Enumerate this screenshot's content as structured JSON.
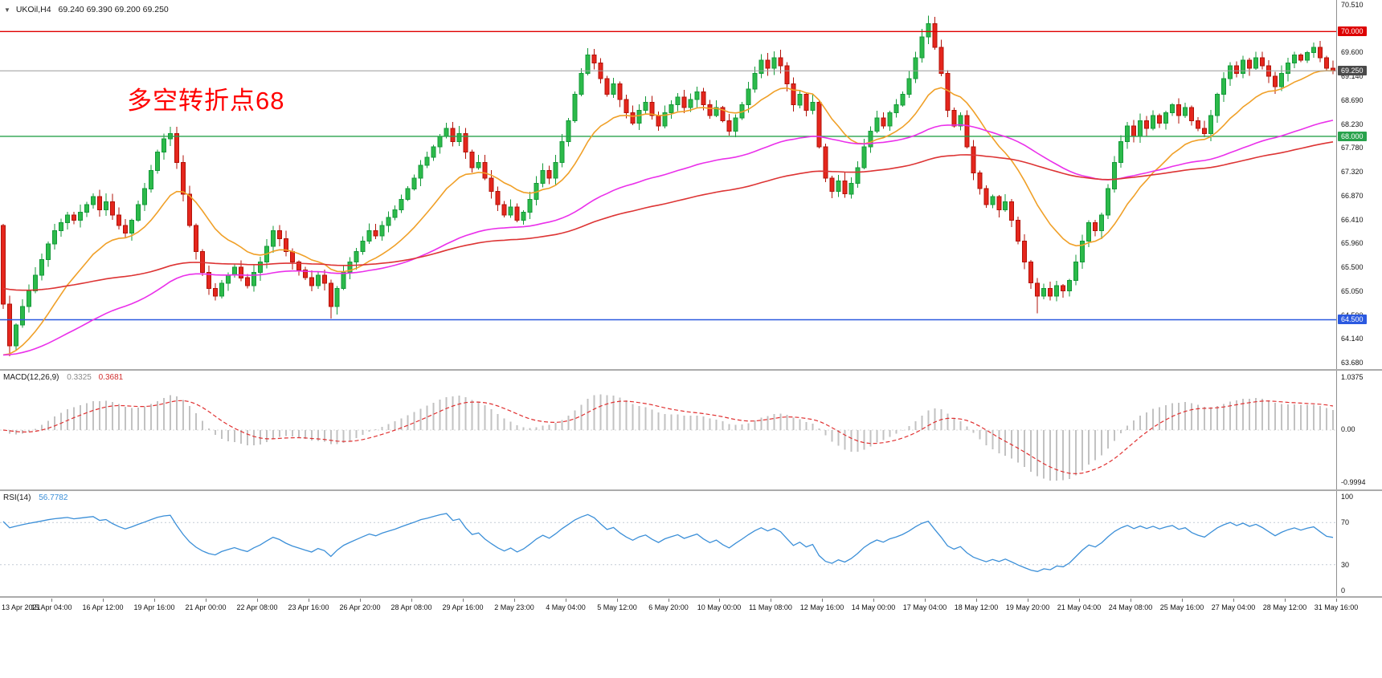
{
  "header": {
    "collapse_icon": "▼",
    "symbol": "UKOil,H4",
    "ohlc": "69.240 69.390 69.200 69.250"
  },
  "annotation": {
    "text": "多空转折点68",
    "color": "#ff0000"
  },
  "colors": {
    "up": "#2cba4a",
    "up_stroke": "#149939",
    "down": "#e5261d",
    "down_stroke": "#b21309",
    "ma_fast": "#f0a028",
    "ma_mid": "#ea30ea",
    "ma_slow": "#dd3434",
    "line_red": "#e00000",
    "line_green": "#28a24c",
    "line_blue": "#2b59e0",
    "bid_line": "#9a9a9a",
    "macd_hist": "#c2c2c2",
    "macd_signal": "#e03030",
    "rsi_line": "#3b8fd8"
  },
  "price_axis": {
    "ticks": [
      {
        "text": "70.510",
        "value": 70.51
      },
      {
        "text": "69.600",
        "value": 69.6
      },
      {
        "text": "69.140",
        "value": 69.14
      },
      {
        "text": "68.690",
        "value": 68.69
      },
      {
        "text": "68.230",
        "value": 68.23
      },
      {
        "text": "67.780",
        "value": 67.78
      },
      {
        "text": "67.320",
        "value": 67.32
      },
      {
        "text": "66.870",
        "value": 66.87
      },
      {
        "text": "66.410",
        "value": 66.41
      },
      {
        "text": "65.960",
        "value": 65.96
      },
      {
        "text": "65.500",
        "value": 65.5
      },
      {
        "text": "65.050",
        "value": 65.05
      },
      {
        "text": "64.590",
        "value": 64.59
      },
      {
        "text": "64.140",
        "value": 64.14
      },
      {
        "text": "63.680",
        "value": 63.68
      }
    ],
    "badges": [
      {
        "text": "70.000",
        "value": 70.0,
        "bg": "#dd0000"
      },
      {
        "text": "69.250",
        "value": 69.25,
        "bg": "#4a4a4a"
      },
      {
        "text": "68.000",
        "value": 68.0,
        "bg": "#28a24c"
      },
      {
        "text": "64.500",
        "value": 64.5,
        "bg": "#2b59e0"
      }
    ]
  },
  "chart_data": [
    {
      "type": "candlestick",
      "title": "UKOil H4 candlestick chart",
      "ylim": [
        63.558,
        70.602
      ],
      "first_open": 66.3,
      "closes": [
        64.8,
        64.0,
        64.4,
        64.75,
        65.05,
        65.35,
        65.65,
        65.95,
        66.2,
        66.35,
        66.5,
        66.4,
        66.55,
        66.7,
        66.85,
        66.6,
        66.75,
        66.5,
        66.3,
        66.15,
        66.4,
        66.7,
        67.0,
        67.35,
        67.7,
        67.95,
        68.05,
        67.5,
        66.9,
        66.3,
        65.8,
        65.4,
        65.1,
        64.95,
        65.2,
        65.35,
        65.5,
        65.3,
        65.15,
        65.4,
        65.6,
        65.9,
        66.2,
        66.05,
        65.8,
        65.6,
        65.45,
        65.3,
        65.15,
        65.35,
        65.2,
        64.75,
        65.1,
        65.4,
        65.6,
        65.8,
        66.0,
        66.2,
        66.1,
        66.3,
        66.45,
        66.6,
        66.8,
        67.0,
        67.2,
        67.45,
        67.6,
        67.8,
        68.0,
        68.15,
        67.9,
        68.05,
        67.7,
        67.4,
        67.5,
        67.2,
        66.95,
        66.7,
        66.5,
        66.65,
        66.4,
        66.55,
        66.8,
        67.1,
        67.35,
        67.2,
        67.5,
        67.9,
        68.3,
        68.8,
        69.2,
        69.55,
        69.4,
        69.1,
        68.8,
        69.0,
        68.7,
        68.45,
        68.25,
        68.5,
        68.65,
        68.4,
        68.2,
        68.45,
        68.6,
        68.75,
        68.55,
        68.7,
        68.85,
        68.6,
        68.4,
        68.55,
        68.3,
        68.1,
        68.35,
        68.6,
        68.9,
        69.2,
        69.45,
        69.3,
        69.5,
        69.35,
        69.0,
        68.6,
        68.8,
        68.5,
        68.65,
        67.8,
        67.2,
        66.95,
        67.15,
        66.9,
        67.1,
        67.4,
        67.8,
        68.1,
        68.35,
        68.2,
        68.45,
        68.6,
        68.8,
        69.1,
        69.5,
        69.9,
        70.15,
        69.7,
        69.2,
        68.5,
        68.2,
        68.4,
        67.8,
        67.3,
        67.0,
        66.7,
        66.85,
        66.6,
        66.75,
        66.4,
        66.0,
        65.6,
        65.2,
        64.95,
        65.1,
        64.95,
        65.15,
        65.05,
        65.25,
        65.6,
        66.0,
        66.35,
        66.2,
        66.5,
        67.0,
        67.5,
        67.9,
        68.2,
        68.0,
        68.3,
        68.15,
        68.4,
        68.25,
        68.45,
        68.6,
        68.4,
        68.55,
        68.3,
        68.15,
        68.05,
        68.4,
        68.8,
        69.1,
        69.35,
        69.2,
        69.45,
        69.3,
        69.5,
        69.35,
        69.15,
        68.95,
        69.2,
        69.4,
        69.55,
        69.45,
        69.6,
        69.7,
        69.5,
        69.3,
        69.25
      ],
      "wick_overrides": {
        "1": {
          "low": 63.8
        },
        "26": {
          "high": 68.18
        },
        "51": {
          "low": 64.52
        },
        "91": {
          "high": 69.68
        },
        "120": {
          "high": 69.62
        },
        "144": {
          "high": 70.3
        },
        "161": {
          "low": 64.62
        }
      },
      "hlines": [
        {
          "value": 70.0,
          "label": "70.000",
          "color": "#e00000"
        },
        {
          "value": 68.0,
          "label": "68.000",
          "color": "#28a24c"
        },
        {
          "value": 64.5,
          "label": "64.500",
          "color": "#2b59e0"
        }
      ],
      "current_price": 69.25,
      "moving_averages": [
        {
          "name": "fast",
          "period": 16,
          "seed": 63.7,
          "color_key": "ma_fast"
        },
        {
          "name": "mid",
          "period": 70,
          "seed": 63.8,
          "color_key": "ma_mid"
        },
        {
          "name": "slow",
          "period": 130,
          "seed": 65.1,
          "color_key": "ma_slow"
        }
      ]
    },
    {
      "type": "macd",
      "label": "MACD(12,26,9)",
      "value_main": "0.3325",
      "value_signal": "0.3681",
      "fast": 12,
      "slow": 26,
      "signal": 9,
      "axis": [
        "1.0375",
        "0.00",
        "-0.9994"
      ]
    },
    {
      "type": "rsi",
      "label": "RSI(14)",
      "value": "56.7782",
      "period": 14,
      "levels": [
        70,
        30
      ],
      "axis": [
        "100",
        "70",
        "30",
        "0"
      ]
    }
  ],
  "time_axis": {
    "labels": [
      "13 Apr 2021",
      "15 Apr 04:00",
      "16 Apr 12:00",
      "19 Apr 16:00",
      "21 Apr 00:00",
      "22 Apr 08:00",
      "23 Apr 16:00",
      "26 Apr 20:00",
      "28 Apr 08:00",
      "29 Apr 16:00",
      "2 May 23:00",
      "4 May 04:00",
      "5 May 12:00",
      "6 May 20:00",
      "10 May 00:00",
      "11 May 08:00",
      "12 May 16:00",
      "14 May 00:00",
      "17 May 04:00",
      "18 May 12:00",
      "19 May 20:00",
      "21 May 04:00",
      "24 May 08:00",
      "25 May 16:00",
      "27 May 04:00",
      "28 May 12:00",
      "31 May 16:00"
    ]
  }
}
